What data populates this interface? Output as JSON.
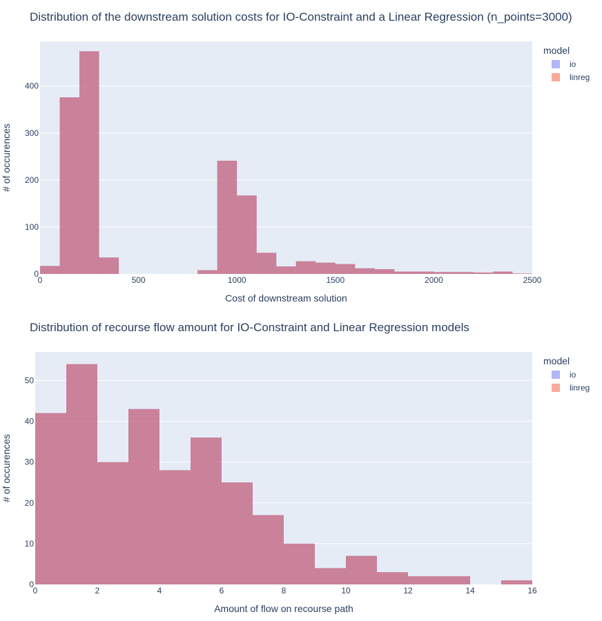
{
  "colors": {
    "plot_bg": "#e5ecf6",
    "grid": "#ffffff",
    "io": "#636efa",
    "linreg": "#ef553b",
    "text": "#2a3f5f"
  },
  "chart_data": [
    {
      "type": "bar",
      "title": "Distribution of the downstream solution costs for IO-Constraint and a Linear Regression (n_points=3000)",
      "xlabel": "Cost of downstream solution",
      "ylabel": "# of occurences",
      "xlim": [
        0,
        2500
      ],
      "ylim": [
        0,
        495
      ],
      "x_ticks": [
        0,
        500,
        1000,
        1500,
        2000,
        2500
      ],
      "y_ticks": [
        0,
        100,
        200,
        300,
        400
      ],
      "bin_width": 100,
      "bin_starts": [
        0,
        100,
        200,
        300,
        400,
        500,
        600,
        700,
        800,
        900,
        1000,
        1100,
        1200,
        1300,
        1400,
        1500,
        1600,
        1700,
        1800,
        1900,
        2000,
        2100,
        2200,
        2300,
        2400
      ],
      "values": [
        17,
        376,
        474,
        35,
        0,
        0,
        0,
        0,
        8,
        241,
        167,
        45,
        16,
        27,
        24,
        21,
        12,
        10,
        5,
        5,
        4,
        4,
        3,
        5,
        1
      ],
      "legend": {
        "title": "model",
        "position": "top-right",
        "items": [
          "io",
          "linreg"
        ]
      },
      "grid": true
    },
    {
      "type": "bar",
      "title": "Distribution of recourse flow amount for IO-Constraint and Linear Regression models",
      "xlabel": "Amount of flow on recourse path",
      "ylabel": "# of occurences",
      "xlim": [
        0,
        16
      ],
      "ylim": [
        0,
        57
      ],
      "x_ticks": [
        0,
        2,
        4,
        6,
        8,
        10,
        12,
        14,
        16
      ],
      "y_ticks": [
        0,
        10,
        20,
        30,
        40,
        50
      ],
      "bin_width": 1,
      "bin_starts": [
        0,
        1,
        2,
        3,
        4,
        5,
        6,
        7,
        8,
        9,
        10,
        11,
        12,
        13,
        14,
        15
      ],
      "values": [
        42,
        54,
        30,
        43,
        28,
        36,
        25,
        17,
        10,
        4,
        7,
        3,
        2,
        2,
        0,
        1
      ],
      "legend": {
        "title": "model",
        "position": "top-right",
        "items": [
          "io",
          "linreg"
        ]
      },
      "grid": true
    }
  ]
}
